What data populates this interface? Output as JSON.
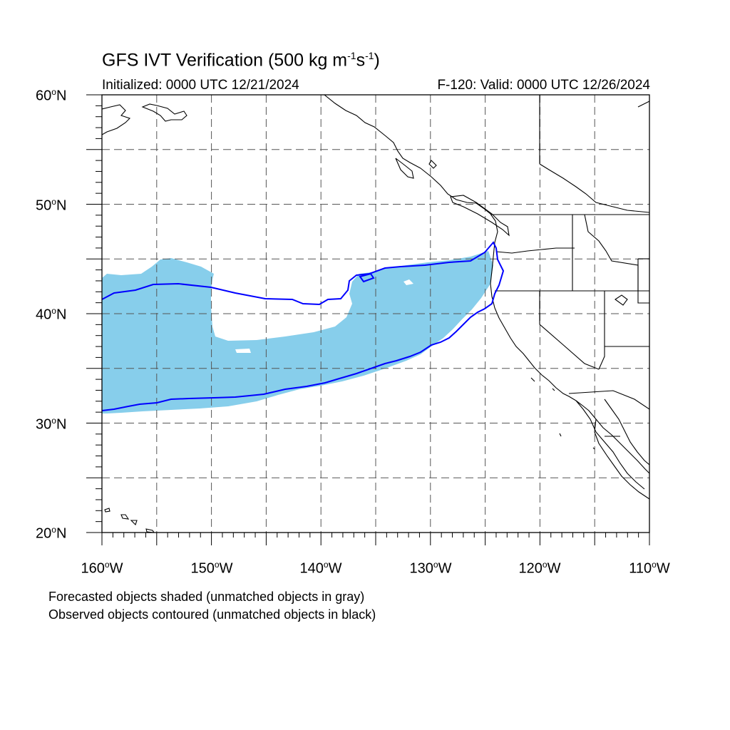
{
  "title": {
    "main": "GFS IVT Verification (500 kg m",
    "exp1": "-1",
    "mid": "s",
    "exp2": "-1",
    "end": ")"
  },
  "subtitle": {
    "initialized": "Initialized: 0000 UTC 12/21/2024",
    "valid": "F-120: Valid: 0000 UTC 12/26/2024"
  },
  "axes": {
    "lat_labels": [
      {
        "value": "60",
        "suffix": "N"
      },
      {
        "value": "50",
        "suffix": "N"
      },
      {
        "value": "40",
        "suffix": "N"
      },
      {
        "value": "30",
        "suffix": "N"
      },
      {
        "value": "20",
        "suffix": "N"
      }
    ],
    "lon_labels": [
      {
        "value": "160",
        "suffix": "W"
      },
      {
        "value": "150",
        "suffix": "W"
      },
      {
        "value": "140",
        "suffix": "W"
      },
      {
        "value": "130",
        "suffix": "W"
      },
      {
        "value": "120",
        "suffix": "W"
      },
      {
        "value": "110",
        "suffix": "W"
      }
    ],
    "degree_symbol": "o",
    "lat_range": [
      20,
      60
    ],
    "lon_range": [
      -160,
      -110
    ],
    "grid_spacing_deg": 5,
    "grid_style": "dashed"
  },
  "footer": {
    "line1": "Forecasted objects shaded (unmatched objects in gray)",
    "line2": "Observed objects contoured (unmatched objects in black)"
  },
  "colors": {
    "forecast_fill": "#87ceeb",
    "observed_contour": "#0000ff",
    "coastline": "#000000",
    "grid": "#555555"
  }
}
